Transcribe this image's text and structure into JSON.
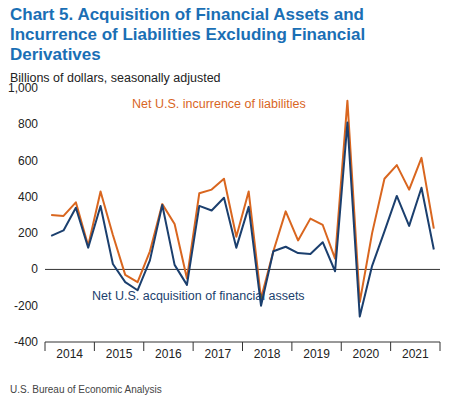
{
  "chart_data": {
    "type": "line",
    "title": "Chart 5. Acquisition of Financial Assets and Incurrence of Liabilities Excluding Financial Derivatives",
    "subtitle": "Billions of dollars, seasonally adjusted",
    "source": "U.S. Bureau of Economic Analysis",
    "categories": [
      "2014",
      null,
      null,
      null,
      "2015",
      null,
      null,
      null,
      "2016",
      null,
      null,
      null,
      "2017",
      null,
      null,
      null,
      "2018",
      null,
      null,
      null,
      "2019",
      null,
      null,
      null,
      "2020",
      null,
      null,
      null,
      "2021",
      null,
      null,
      null
    ],
    "series": [
      {
        "name": "Net U.S. incurrence of liabilities",
        "color": "#d9661f",
        "values": [
          300,
          295,
          370,
          130,
          430,
          190,
          -30,
          -70,
          100,
          360,
          250,
          -50,
          420,
          440,
          500,
          180,
          430,
          -160,
          100,
          320,
          160,
          280,
          245,
          60,
          930,
          -180,
          200,
          500,
          575,
          440,
          615,
          225
        ]
      },
      {
        "name": "Net U.S. acquisition of financial assets",
        "color": "#1b3f6e",
        "values": [
          185,
          215,
          340,
          120,
          350,
          30,
          -70,
          -115,
          50,
          355,
          25,
          -85,
          350,
          325,
          395,
          120,
          345,
          -200,
          100,
          125,
          90,
          85,
          150,
          -10,
          810,
          -260,
          20,
          210,
          405,
          240,
          450,
          110
        ]
      }
    ],
    "ylim": [
      -400,
      1000
    ],
    "yticks": [
      -400,
      -200,
      0,
      200,
      400,
      600,
      800,
      {
        "value": 1000,
        "label": "1,000"
      }
    ],
    "grid": false
  }
}
